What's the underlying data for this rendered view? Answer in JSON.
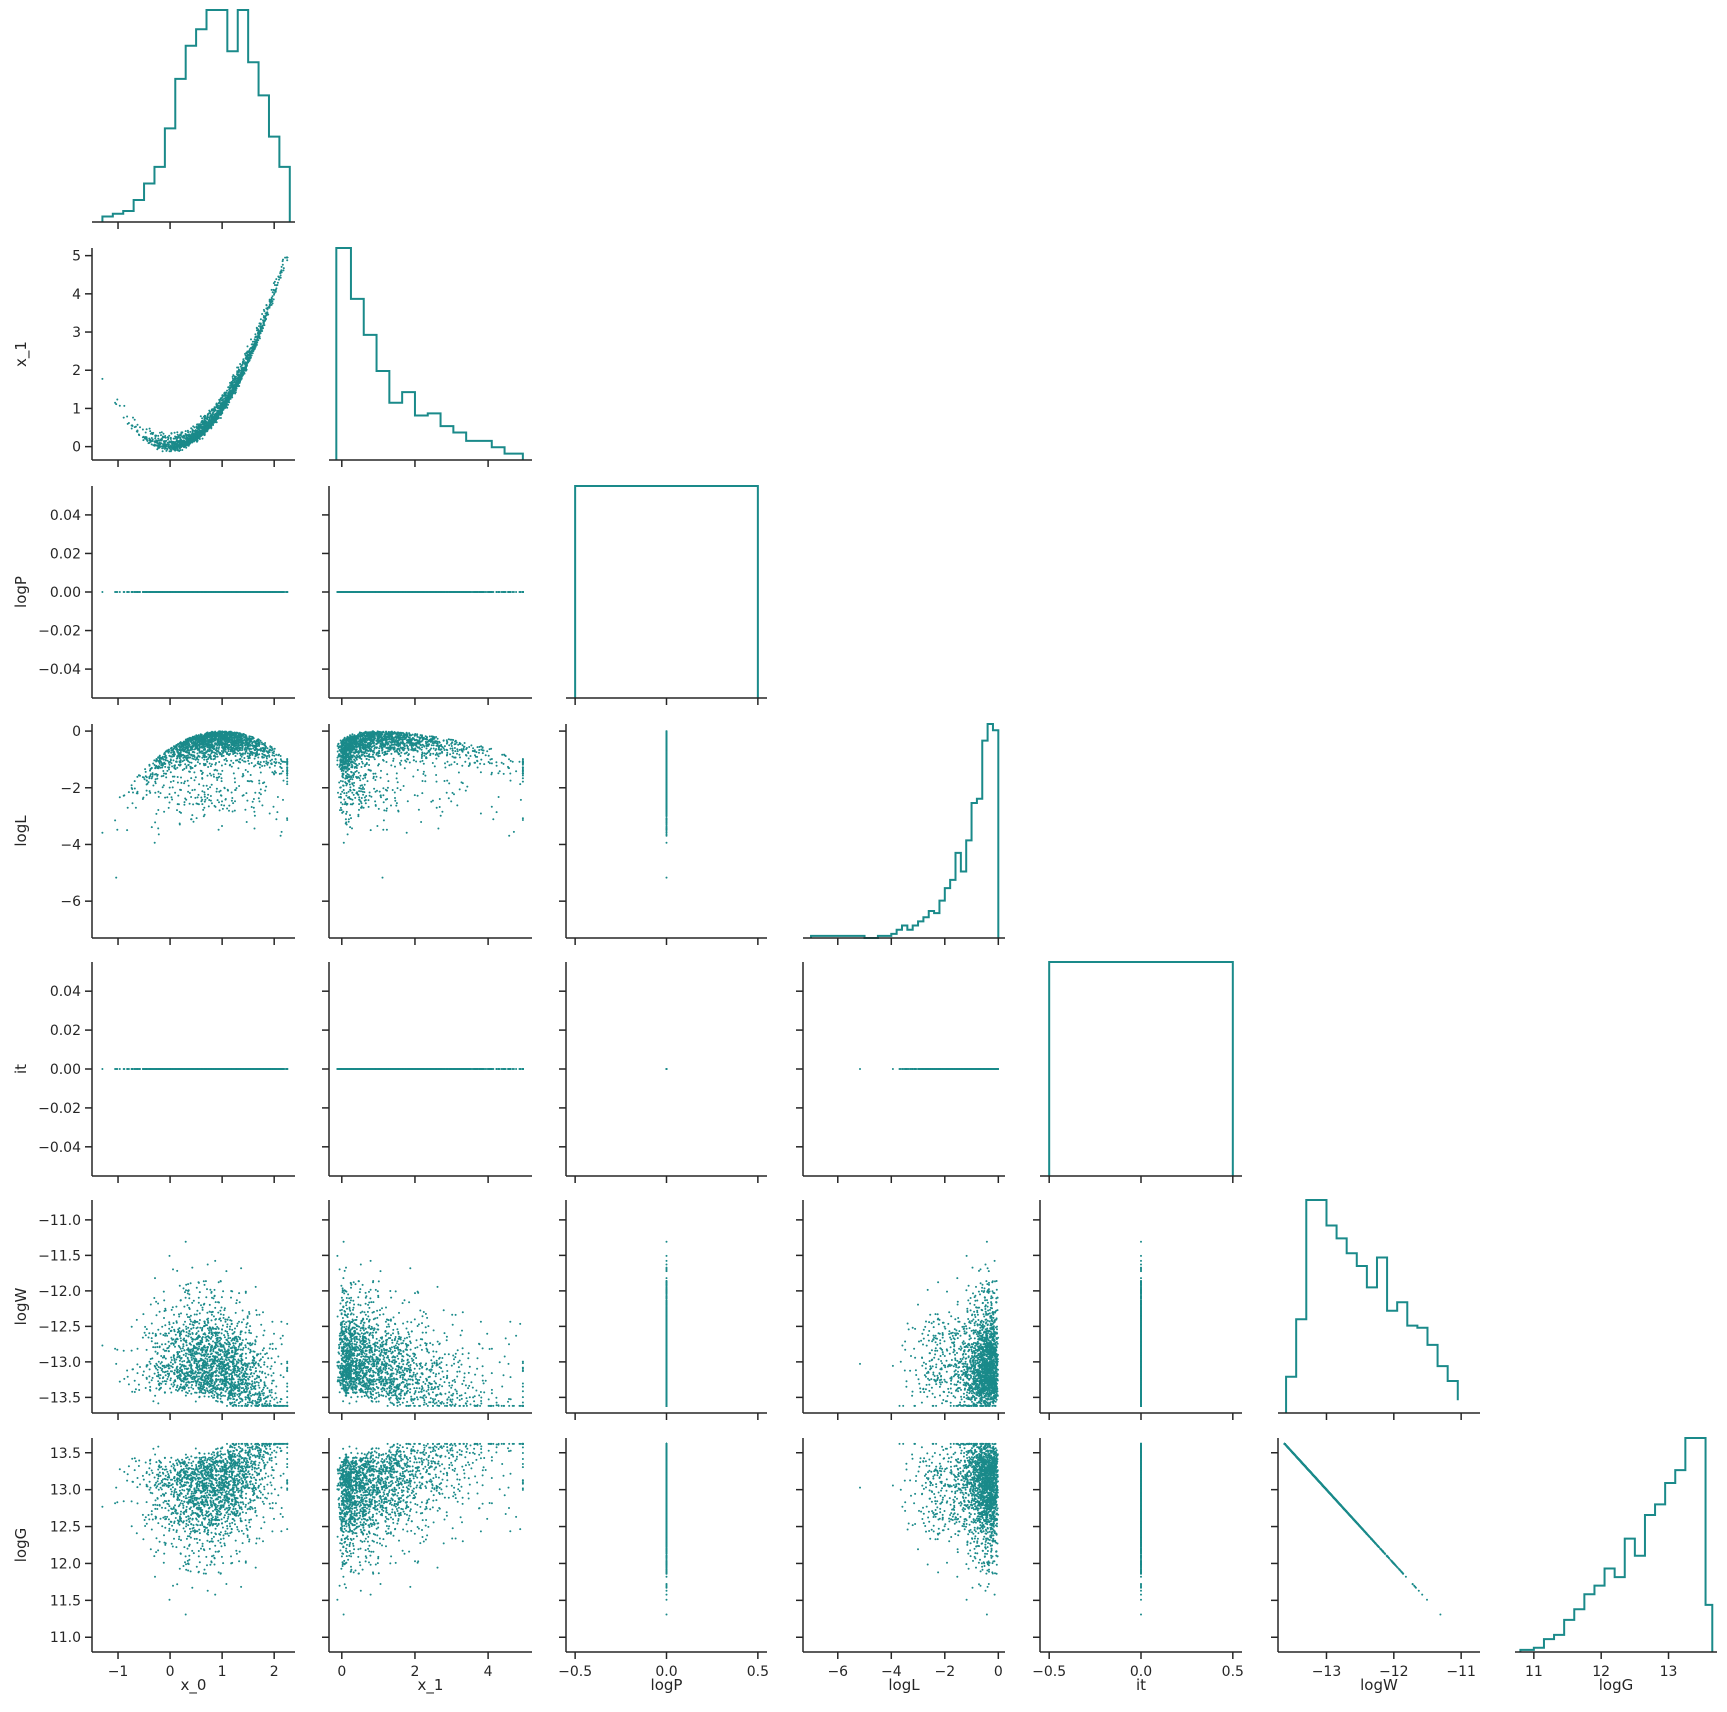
{
  "chart_data": {
    "type": "pairplot",
    "layout": "corner",
    "diagonal": "step-histogram",
    "offdiagonal": "scatter",
    "color": "#1a8a8a",
    "variables": [
      "x_0",
      "x_1",
      "logP",
      "logL",
      "it",
      "logW",
      "logG"
    ],
    "axes": {
      "x_0": {
        "range": [
          -1.5,
          2.4
        ],
        "ticks": [
          -1,
          0,
          1,
          2
        ],
        "tick_labels": [
          "−1",
          "0",
          "1",
          "2"
        ]
      },
      "x_1": {
        "range": [
          -0.35,
          5.2
        ],
        "ticks": [
          0,
          2,
          4
        ],
        "tick_labels": [
          "0",
          "2",
          "4"
        ],
        "y_ticks": [
          0,
          1,
          2,
          3,
          4,
          5
        ],
        "y_tick_labels": [
          "0",
          "1",
          "2",
          "3",
          "4",
          "5"
        ]
      },
      "logP": {
        "range": [
          -0.055,
          0.055
        ],
        "ticks": [
          -0.04,
          -0.02,
          0.0,
          0.02,
          0.04
        ],
        "tick_labels": [
          "−0.04",
          "−0.02",
          "0.00",
          "0.02",
          "0.04"
        ],
        "x_range": [
          -0.55,
          0.55
        ],
        "x_ticks": [
          -0.5,
          0,
          0.5
        ],
        "x_tick_labels": [
          "−0.5",
          "0.0",
          "0.5"
        ]
      },
      "logL": {
        "range": [
          -7.3,
          0.25
        ],
        "ticks": [
          -6,
          -4,
          -2,
          0
        ],
        "tick_labels": [
          "−6",
          "−4",
          "−2",
          "0"
        ]
      },
      "it": {
        "range": [
          -0.055,
          0.055
        ],
        "ticks": [
          -0.04,
          -0.02,
          0.0,
          0.02,
          0.04
        ],
        "tick_labels": [
          "−0.04",
          "−0.02",
          "0.00",
          "0.02",
          "0.04"
        ],
        "x_range": [
          -0.55,
          0.55
        ],
        "x_ticks": [
          -0.5,
          0,
          0.5
        ],
        "x_tick_labels": [
          "−0.5",
          "0.0",
          "0.5"
        ]
      },
      "logW": {
        "range": [
          -13.72,
          -10.72
        ],
        "ticks": [
          -13.5,
          -13.0,
          -12.5,
          -12.0,
          -11.5,
          -11.0
        ],
        "tick_labels": [
          "−13.5",
          "−13.0",
          "−12.5",
          "−12.0",
          "−11.5",
          "−11.0"
        ],
        "x_ticks": [
          -13,
          -12,
          -11
        ],
        "x_tick_labels": [
          "−13",
          "−12",
          "−11"
        ]
      },
      "logG": {
        "range": [
          10.8,
          13.7
        ],
        "ticks": [
          11.0,
          11.5,
          12.0,
          12.5,
          13.0,
          13.5
        ],
        "tick_labels": [
          "11.0",
          "11.5",
          "12.0",
          "12.5",
          "13.0",
          "13.5"
        ],
        "x_range": [
          10.72,
          13.72
        ],
        "x_ticks": [
          11,
          12,
          13
        ],
        "x_tick_labels": [
          "11",
          "12",
          "13"
        ]
      }
    },
    "histograms": {
      "x_0": {
        "edges": [
          -1.3,
          -1.1,
          -0.9,
          -0.7,
          -0.5,
          -0.3,
          -0.1,
          0.1,
          0.3,
          0.5,
          0.7,
          0.9,
          1.1,
          1.3,
          1.5,
          1.7,
          1.9,
          2.1,
          2.3
        ],
        "counts": [
          2,
          3,
          4,
          8,
          14,
          20,
          34,
          52,
          64,
          70,
          77,
          77,
          62,
          77,
          58,
          46,
          31,
          20
        ]
      },
      "x_1": {
        "edges": [
          -0.15,
          0.25,
          0.6,
          0.95,
          1.3,
          1.65,
          2.0,
          2.35,
          2.7,
          3.05,
          3.4,
          3.75,
          4.1,
          4.45,
          4.95
        ],
        "counts": [
          100,
          76,
          59,
          42,
          27,
          32,
          21,
          22,
          16,
          13,
          9,
          9,
          6,
          3
        ]
      },
      "logP": {
        "edges": [
          -0.5,
          0.5
        ],
        "counts": [
          1
        ]
      },
      "logL": {
        "edges": [
          -7.0,
          -6.5,
          -6.0,
          -5.5,
          -5.0,
          -4.5,
          -4.0,
          -3.8,
          -3.6,
          -3.4,
          -3.2,
          -3.0,
          -2.8,
          -2.6,
          -2.4,
          -2.2,
          -2.0,
          -1.8,
          -1.6,
          -1.4,
          -1.2,
          -1.0,
          -0.8,
          -0.6,
          -0.4,
          -0.2,
          0.0
        ],
        "counts": [
          1,
          1,
          1,
          1,
          0,
          1,
          2,
          4,
          6,
          4,
          6,
          8,
          10,
          13,
          12,
          18,
          24,
          28,
          41,
          32,
          47,
          65,
          67,
          95,
          103,
          100
        ]
      },
      "it": {
        "edges": [
          -0.5,
          0.5
        ],
        "counts": [
          1
        ]
      },
      "logW": {
        "edges": [
          -13.6,
          -13.45,
          -13.3,
          -13.15,
          -13.0,
          -12.85,
          -12.7,
          -12.55,
          -12.4,
          -12.25,
          -12.1,
          -11.95,
          -11.8,
          -11.65,
          -11.5,
          -11.35,
          -11.2,
          -11.05
        ],
        "counts": [
          17,
          44,
          100,
          100,
          88,
          82,
          75,
          69,
          59,
          73,
          48,
          52,
          41,
          40,
          32,
          22,
          15,
          6
        ]
      },
      "logG": {
        "edges": [
          10.8,
          11.0,
          11.15,
          11.3,
          11.45,
          11.6,
          11.75,
          11.9,
          12.05,
          12.2,
          12.35,
          12.5,
          12.65,
          12.8,
          12.95,
          13.1,
          13.25,
          13.4,
          13.55,
          13.65
        ],
        "counts": [
          1,
          2,
          6,
          8,
          15,
          20,
          27,
          31,
          39,
          35,
          53,
          45,
          64,
          69,
          79,
          85,
          100,
          100,
          22
        ]
      }
    },
    "scatter_description": "Pairwise scatter of 7 parameters over ~2000 samples; x_1 ≈ x_0^2 parabola, logP and it constant at 0, logW ≈ -logG (perfect anticorrelation)",
    "title": "",
    "legend": "none"
  }
}
